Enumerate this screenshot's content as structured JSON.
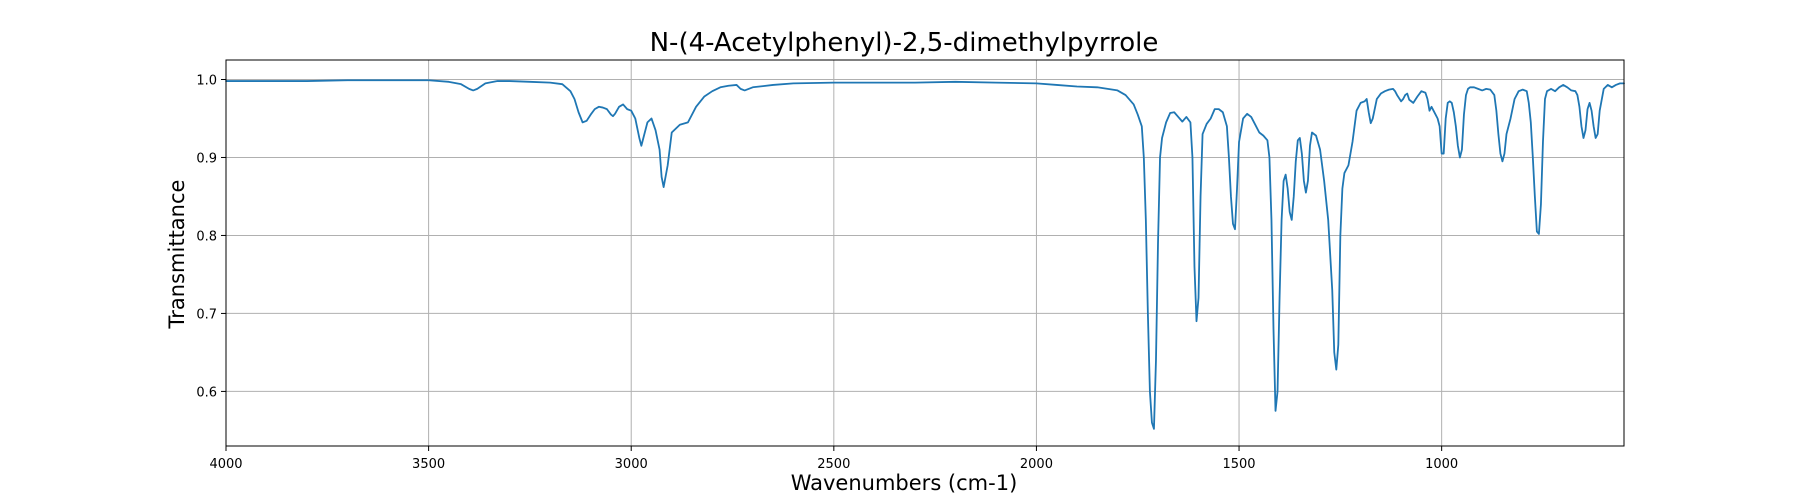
{
  "chart_data": {
    "type": "line",
    "title": "N-(4-Acetylphenyl)-2,5-dimethylpyrrole",
    "xlabel": "Wavenumbers (cm-1)",
    "ylabel": "Transmittance",
    "xlim": [
      4000,
      550
    ],
    "ylim": [
      0.53,
      1.025
    ],
    "x_reversed": true,
    "grid": true,
    "legend": "none",
    "x_ticks": [
      4000,
      3500,
      3000,
      2500,
      2000,
      1500,
      1000
    ],
    "x_tick_labels": [
      "4000",
      "3500",
      "3000",
      "2500",
      "2000",
      "1500",
      "1000"
    ],
    "y_ticks": [
      0.6,
      0.7,
      0.8,
      0.9,
      1.0
    ],
    "y_tick_labels": [
      "0.6",
      "0.7",
      "0.8",
      "0.9",
      "1.0"
    ],
    "series": [
      {
        "color": "#1f77b4",
        "x": [
          4000,
          3900,
          3800,
          3700,
          3600,
          3500,
          3450,
          3420,
          3400,
          3390,
          3380,
          3360,
          3330,
          3300,
          3250,
          3200,
          3170,
          3150,
          3140,
          3130,
          3120,
          3110,
          3100,
          3090,
          3080,
          3070,
          3060,
          3050,
          3045,
          3040,
          3030,
          3020,
          3010,
          3000,
          2990,
          2980,
          2975,
          2970,
          2960,
          2950,
          2940,
          2930,
          2925,
          2920,
          2910,
          2900,
          2880,
          2860,
          2840,
          2820,
          2800,
          2780,
          2760,
          2740,
          2730,
          2720,
          2700,
          2650,
          2600,
          2500,
          2400,
          2300,
          2200,
          2100,
          2000,
          1950,
          1900,
          1850,
          1800,
          1780,
          1760,
          1750,
          1740,
          1735,
          1730,
          1725,
          1720,
          1715,
          1710,
          1705,
          1700,
          1695,
          1690,
          1680,
          1670,
          1660,
          1650,
          1640,
          1630,
          1620,
          1615,
          1610,
          1605,
          1600,
          1595,
          1590,
          1580,
          1570,
          1560,
          1550,
          1540,
          1530,
          1525,
          1520,
          1515,
          1510,
          1505,
          1500,
          1490,
          1480,
          1470,
          1460,
          1450,
          1440,
          1430,
          1425,
          1420,
          1415,
          1410,
          1405,
          1400,
          1395,
          1390,
          1385,
          1380,
          1375,
          1370,
          1365,
          1360,
          1355,
          1350,
          1345,
          1340,
          1335,
          1330,
          1325,
          1320,
          1310,
          1300,
          1290,
          1280,
          1270,
          1265,
          1260,
          1255,
          1250,
          1245,
          1240,
          1230,
          1220,
          1210,
          1200,
          1190,
          1185,
          1180,
          1175,
          1170,
          1160,
          1150,
          1140,
          1130,
          1120,
          1115,
          1110,
          1100,
          1095,
          1090,
          1085,
          1080,
          1070,
          1060,
          1050,
          1040,
          1035,
          1030,
          1025,
          1020,
          1015,
          1010,
          1005,
          1000,
          995,
          990,
          985,
          980,
          975,
          970,
          965,
          960,
          955,
          950,
          945,
          940,
          935,
          930,
          920,
          910,
          900,
          890,
          880,
          870,
          865,
          860,
          855,
          850,
          845,
          840,
          830,
          820,
          810,
          800,
          790,
          785,
          780,
          775,
          770,
          765,
          760,
          755,
          750,
          745,
          740,
          730,
          720,
          710,
          700,
          690,
          680,
          670,
          665,
          660,
          655,
          650,
          645,
          640,
          635,
          630,
          625,
          620,
          615,
          610,
          600,
          590,
          580,
          570,
          560,
          550
        ],
        "y": [
          0.998,
          0.998,
          0.998,
          0.999,
          0.999,
          0.999,
          0.997,
          0.994,
          0.988,
          0.986,
          0.988,
          0.995,
          0.998,
          0.998,
          0.997,
          0.996,
          0.994,
          0.985,
          0.975,
          0.958,
          0.945,
          0.947,
          0.955,
          0.962,
          0.965,
          0.964,
          0.962,
          0.955,
          0.953,
          0.956,
          0.965,
          0.968,
          0.962,
          0.96,
          0.95,
          0.925,
          0.915,
          0.925,
          0.945,
          0.95,
          0.935,
          0.91,
          0.875,
          0.862,
          0.89,
          0.932,
          0.942,
          0.945,
          0.965,
          0.978,
          0.985,
          0.99,
          0.992,
          0.993,
          0.988,
          0.986,
          0.99,
          0.993,
          0.995,
          0.996,
          0.996,
          0.996,
          0.997,
          0.996,
          0.995,
          0.993,
          0.991,
          0.99,
          0.986,
          0.98,
          0.968,
          0.955,
          0.94,
          0.9,
          0.82,
          0.7,
          0.6,
          0.56,
          0.552,
          0.64,
          0.79,
          0.9,
          0.925,
          0.945,
          0.957,
          0.958,
          0.952,
          0.946,
          0.952,
          0.945,
          0.9,
          0.76,
          0.69,
          0.72,
          0.85,
          0.93,
          0.943,
          0.95,
          0.962,
          0.962,
          0.958,
          0.94,
          0.9,
          0.85,
          0.815,
          0.808,
          0.86,
          0.92,
          0.95,
          0.956,
          0.952,
          0.942,
          0.932,
          0.928,
          0.922,
          0.9,
          0.82,
          0.68,
          0.575,
          0.6,
          0.72,
          0.82,
          0.87,
          0.878,
          0.86,
          0.83,
          0.82,
          0.85,
          0.895,
          0.922,
          0.925,
          0.905,
          0.87,
          0.855,
          0.87,
          0.915,
          0.932,
          0.928,
          0.91,
          0.87,
          0.82,
          0.73,
          0.65,
          0.628,
          0.66,
          0.8,
          0.86,
          0.88,
          0.89,
          0.92,
          0.96,
          0.97,
          0.972,
          0.975,
          0.958,
          0.944,
          0.95,
          0.975,
          0.982,
          0.985,
          0.987,
          0.988,
          0.985,
          0.98,
          0.972,
          0.975,
          0.98,
          0.982,
          0.974,
          0.97,
          0.978,
          0.985,
          0.983,
          0.975,
          0.96,
          0.965,
          0.96,
          0.955,
          0.95,
          0.94,
          0.905,
          0.905,
          0.95,
          0.97,
          0.972,
          0.97,
          0.958,
          0.94,
          0.915,
          0.9,
          0.91,
          0.955,
          0.98,
          0.988,
          0.99,
          0.99,
          0.988,
          0.986,
          0.988,
          0.987,
          0.98,
          0.96,
          0.93,
          0.905,
          0.895,
          0.905,
          0.93,
          0.95,
          0.975,
          0.985,
          0.987,
          0.985,
          0.97,
          0.945,
          0.9,
          0.85,
          0.805,
          0.802,
          0.84,
          0.92,
          0.975,
          0.985,
          0.988,
          0.985,
          0.99,
          0.993,
          0.99,
          0.986,
          0.985,
          0.98,
          0.965,
          0.94,
          0.925,
          0.935,
          0.962,
          0.97,
          0.96,
          0.94,
          0.925,
          0.93,
          0.96,
          0.988,
          0.993,
          0.99,
          0.993,
          0.995,
          0.995
        ]
      }
    ]
  }
}
